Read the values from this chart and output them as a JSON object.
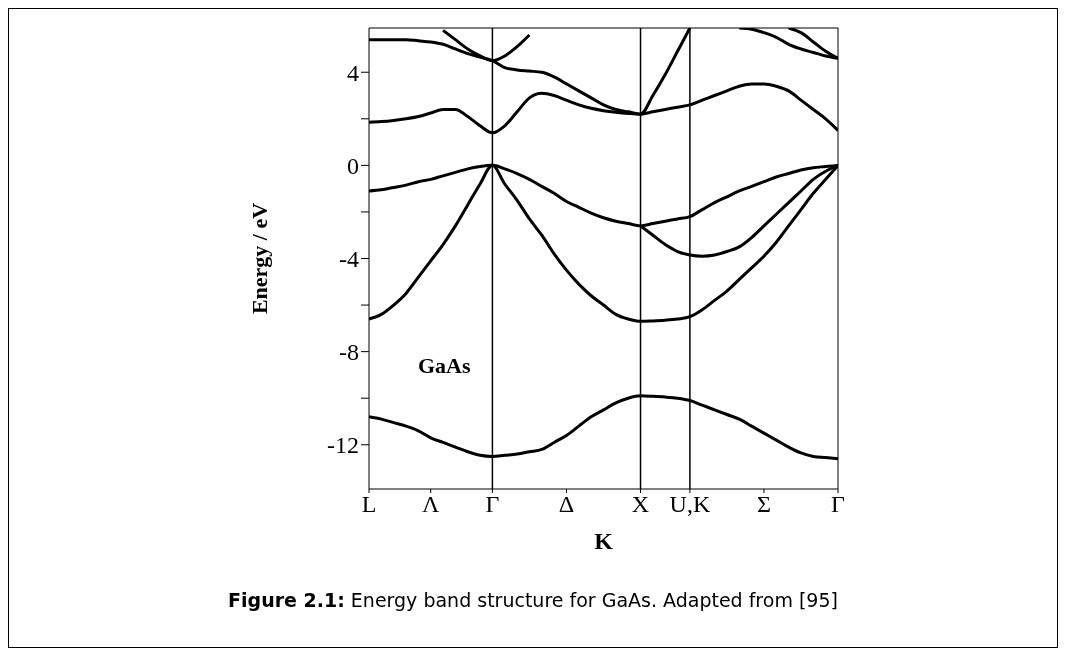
{
  "chart_data": {
    "type": "line",
    "title": "GaAs",
    "xlabel": "K",
    "ylabel": "Energy / eV",
    "annotations": [
      "Figure 2.1:  Energy band structure for GaAs. Adapted from [95]"
    ],
    "categories": [
      "L",
      null,
      null,
      null,
      null,
      "Λ",
      null,
      null,
      null,
      null,
      "Γ",
      null,
      null,
      null,
      null,
      null,
      "Δ",
      null,
      null,
      null,
      null,
      null,
      "X",
      null,
      null,
      null,
      "U,K",
      null,
      null,
      null,
      null,
      null,
      "Σ",
      null,
      null,
      null,
      null,
      null,
      "Γ"
    ],
    "ylim": [
      -13.9,
      5.9
    ],
    "yticks": [
      {
        "value": -12,
        "label": "-12"
      },
      {
        "value": -10,
        "label": null
      },
      {
        "value": -8,
        "label": "-8"
      },
      {
        "value": -6,
        "label": null
      },
      {
        "value": -4,
        "label": "-4"
      },
      {
        "value": -2,
        "label": null
      },
      0,
      {
        "value": 2,
        "label": null
      },
      4
    ],
    "ref_lines": [
      {
        "axis": "x",
        "value": "Γ",
        "color": "#000000"
      },
      {
        "axis": "x",
        "value": "X",
        "color": "#000000"
      },
      {
        "axis": "x",
        "value": "U,K",
        "color": "#000000"
      }
    ],
    "grid": false,
    "marker": "none",
    "line_style": "solid",
    "series": [
      {
        "color": "#000000",
        "values": [
          -10.8,
          -10.9,
          -11.05,
          -11.2,
          -11.4,
          -11.7,
          -11.9,
          -12.1,
          -12.3,
          -12.45,
          -12.5,
          -12.45,
          -12.4,
          -12.3,
          -12.2,
          -11.9,
          -11.6,
          -11.2,
          -10.8,
          -10.5,
          -10.2,
          -10.0,
          -9.9,
          -9.92,
          -9.95,
          -10.0,
          -10.1,
          -10.3,
          -10.5,
          -10.7,
          -10.9,
          -11.2,
          -11.5,
          -11.8,
          -12.1,
          -12.35,
          -12.5,
          -12.55,
          -12.6
        ]
      },
      {
        "color": "#000000",
        "values": [
          -6.6,
          -6.4,
          -6.0,
          -5.5,
          -4.8,
          -4.1,
          -3.4,
          -2.6,
          -1.7,
          -0.8,
          0,
          -0.8,
          -1.5,
          -2.3,
          -3.0,
          -3.8,
          -4.5,
          -5.1,
          -5.6,
          -6.0,
          -6.4,
          -6.6,
          -6.7,
          -6.68,
          -6.65,
          -6.6,
          -6.5,
          -6.2,
          -5.8,
          -5.4,
          -4.9,
          -4.4,
          -3.9,
          -3.3,
          -2.6,
          -1.9,
          -1.2,
          -0.6,
          0
        ]
      },
      {
        "color": "#000000",
        "values": [
          -1.1,
          -1.05,
          -0.95,
          -0.85,
          -0.7,
          -0.6,
          -0.45,
          -0.3,
          -0.15,
          -0.05,
          0,
          -0.15,
          -0.35,
          -0.6,
          -0.9,
          -1.2,
          -1.55,
          -1.8,
          -2.05,
          -2.25,
          -2.4,
          -2.5,
          -2.6,
          -2.5,
          -2.4,
          -2.3,
          -2.2,
          -1.9,
          -1.6,
          -1.35,
          -1.1,
          -0.9,
          -0.7,
          -0.5,
          -0.35,
          -0.2,
          -0.1,
          -0.05,
          0
        ]
      },
      {
        "color": "#000000",
        "values": [
          null,
          null,
          null,
          null,
          null,
          null,
          null,
          null,
          null,
          null,
          null,
          null,
          null,
          null,
          null,
          null,
          null,
          null,
          null,
          null,
          null,
          null,
          -2.6,
          -3.0,
          -3.4,
          -3.7,
          -3.85,
          -3.9,
          -3.85,
          -3.7,
          -3.5,
          -3.1,
          -2.6,
          -2.1,
          -1.6,
          -1.1,
          -0.6,
          -0.25,
          0
        ]
      },
      {
        "color": "#000000",
        "values": [
          1.85,
          1.88,
          1.93,
          2.0,
          2.1,
          2.25,
          2.4,
          2.4,
          2.1,
          1.7,
          1.4,
          1.7,
          2.3,
          2.9,
          3.1,
          3.0,
          2.8,
          2.6,
          2.45,
          2.35,
          2.28,
          2.23,
          2.2,
          2.3,
          2.4,
          2.5,
          2.6,
          2.8,
          3.0,
          3.2,
          3.4,
          3.5,
          3.5,
          3.4,
          3.2,
          2.8,
          2.4,
          2.0,
          1.5
        ]
      },
      {
        "color": "#000000",
        "values": [
          5.4,
          5.4,
          5.4,
          5.4,
          5.35,
          5.3,
          5.2,
          5.0,
          4.8,
          4.65,
          4.5,
          4.2,
          4.1,
          4.05,
          4.0,
          3.8,
          3.5,
          3.2,
          2.9,
          2.6,
          2.4,
          2.3,
          2.2,
          3.0,
          3.9,
          4.9,
          5.9,
          null,
          null,
          null,
          null,
          null,
          null,
          null,
          null,
          null,
          null,
          null,
          null
        ]
      },
      {
        "color": "#000000",
        "values": [
          null,
          null,
          null,
          null,
          null,
          null,
          5.8,
          5.4,
          5.0,
          4.7,
          4.5,
          4.7,
          5.1,
          5.6,
          null,
          null,
          null,
          null,
          null,
          null,
          null,
          null,
          null,
          null,
          null,
          null,
          null,
          null,
          null,
          null,
          null,
          null,
          null,
          null,
          null,
          null,
          null,
          null,
          null
        ]
      },
      {
        "color": "#000000",
        "values": [
          null,
          null,
          null,
          null,
          null,
          null,
          null,
          null,
          null,
          null,
          null,
          null,
          null,
          null,
          null,
          null,
          null,
          null,
          null,
          null,
          null,
          null,
          null,
          null,
          null,
          null,
          null,
          null,
          null,
          null,
          5.9,
          5.85,
          5.7,
          5.5,
          5.2,
          5.0,
          4.85,
          4.7,
          4.6
        ]
      },
      {
        "color": "#000000",
        "values": [
          null,
          null,
          null,
          null,
          null,
          null,
          null,
          null,
          null,
          null,
          null,
          null,
          null,
          null,
          null,
          null,
          null,
          null,
          null,
          null,
          null,
          null,
          null,
          null,
          null,
          null,
          null,
          null,
          null,
          null,
          null,
          null,
          null,
          null,
          5.9,
          5.7,
          5.3,
          4.9,
          4.6
        ]
      }
    ]
  }
}
